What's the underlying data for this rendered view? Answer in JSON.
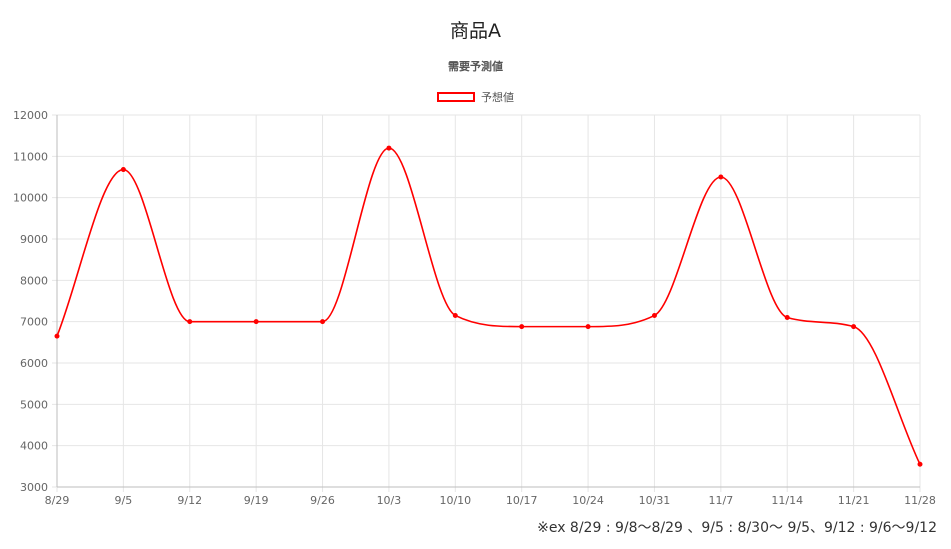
{
  "chart_data": {
    "type": "line",
    "title": "商品A",
    "subtitle": "需要予測値",
    "legend": "top-center",
    "categories": [
      "8/29",
      "9/5",
      "9/12",
      "9/19",
      "9/26",
      "10/3",
      "10/10",
      "10/17",
      "10/24",
      "10/31",
      "11/7",
      "11/14",
      "11/21",
      "11/28"
    ],
    "series": [
      {
        "name": "予想値",
        "color": "#ff0000",
        "values": [
          6650,
          10680,
          7000,
          7000,
          7000,
          11200,
          7150,
          6880,
          6880,
          7150,
          10500,
          7100,
          6880,
          3550
        ]
      }
    ],
    "ylim": [
      3000,
      12000
    ],
    "yticks": [
      3000,
      4000,
      5000,
      6000,
      7000,
      8000,
      9000,
      10000,
      11000,
      12000
    ],
    "grid": true,
    "footnote": "※ex 8/29 : 9/8～8/29 、9/5 : 8/30～ 9/5、9/12 : 9/6～9/12"
  }
}
